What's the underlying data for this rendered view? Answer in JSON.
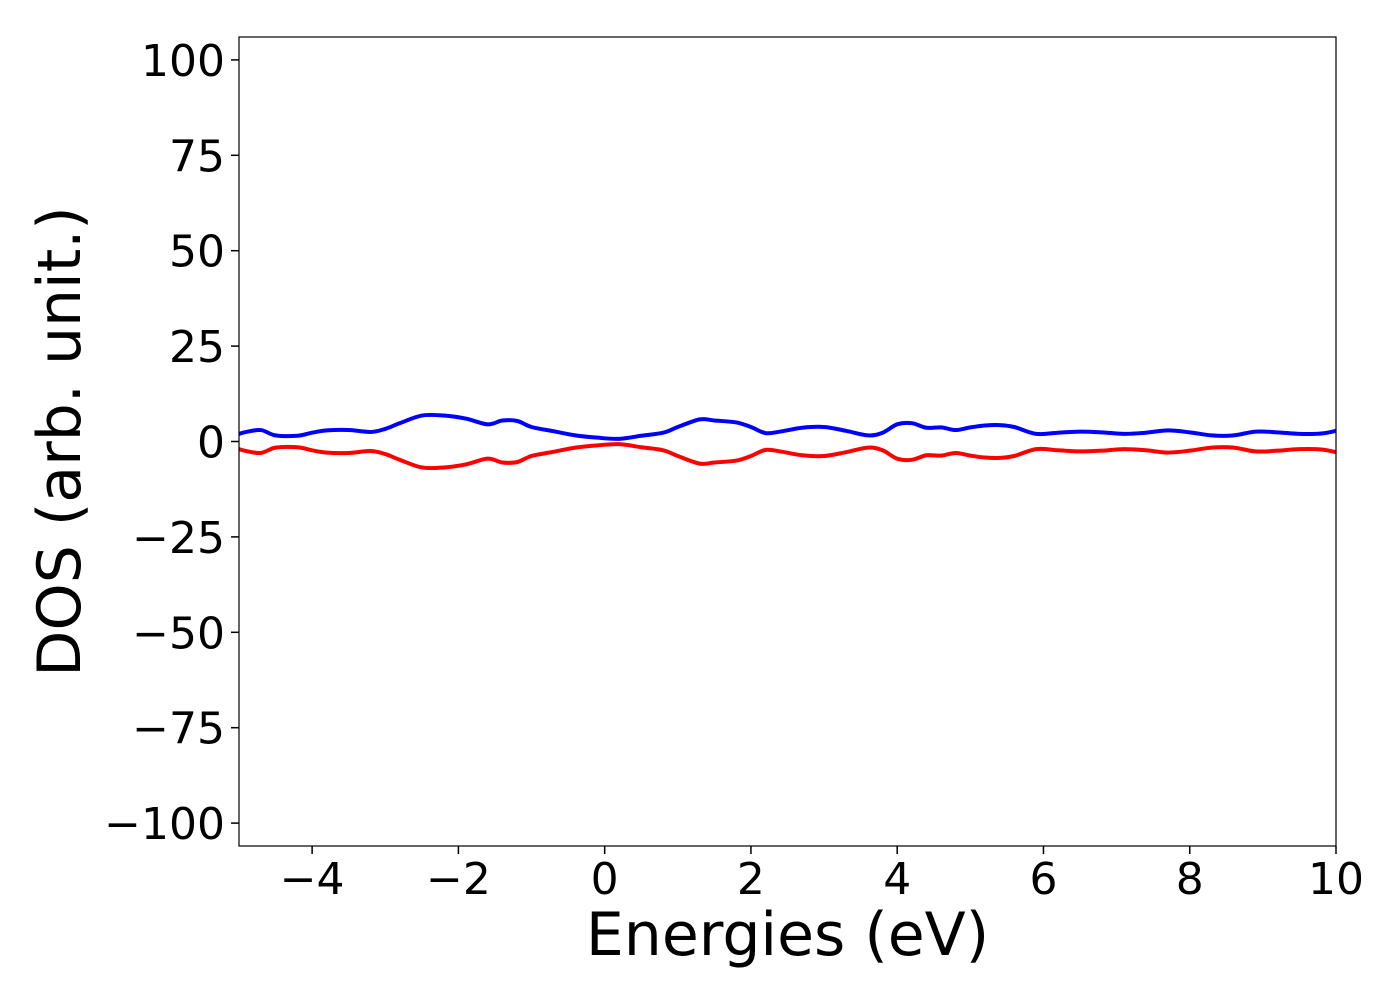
{
  "chart_data": {
    "type": "line",
    "title": "",
    "xlabel": "Energies (eV)",
    "ylabel": "DOS (arb. unit.)",
    "xlim": [
      -5,
      10
    ],
    "ylim": [
      -106,
      106
    ],
    "xticks": [
      -4,
      -2,
      0,
      2,
      4,
      6,
      8,
      10
    ],
    "xtick_labels": [
      "−4",
      "−2",
      "0",
      "2",
      "4",
      "6",
      "8",
      "10"
    ],
    "yticks": [
      100,
      75,
      50,
      25,
      0,
      -25,
      -50,
      -75,
      -100
    ],
    "ytick_labels": [
      "100",
      "75",
      "50",
      "25",
      "0",
      "−25",
      "−50",
      "−75",
      "−100"
    ],
    "grid": false,
    "legend": "none",
    "series": [
      {
        "color": "#0000ff",
        "x": [
          -5.0,
          -4.9,
          -4.7,
          -4.5,
          -4.2,
          -4.0,
          -3.8,
          -3.5,
          -3.2,
          -3.0,
          -2.8,
          -2.5,
          -2.2,
          -1.9,
          -1.6,
          -1.4,
          -1.2,
          -1.0,
          -0.7,
          -0.4,
          -0.1,
          0.2,
          0.5,
          0.8,
          1.0,
          1.3,
          1.5,
          1.8,
          2.0,
          2.2,
          2.4,
          2.7,
          3.0,
          3.3,
          3.6,
          3.8,
          4.0,
          4.2,
          4.4,
          4.6,
          4.8,
          5.0,
          5.2,
          5.4,
          5.6,
          5.9,
          6.2,
          6.5,
          6.8,
          7.1,
          7.4,
          7.7,
          8.0,
          8.3,
          8.6,
          8.9,
          9.2,
          9.5,
          9.8,
          10.0
        ],
        "y": [
          2.0,
          2.5,
          3.0,
          1.6,
          1.5,
          2.3,
          2.9,
          3.0,
          2.5,
          3.3,
          4.8,
          6.8,
          6.8,
          6.0,
          4.5,
          5.5,
          5.4,
          3.8,
          2.7,
          1.6,
          1.0,
          0.7,
          1.5,
          2.3,
          3.8,
          5.8,
          5.5,
          5.0,
          3.8,
          2.2,
          2.6,
          3.6,
          3.8,
          2.8,
          1.6,
          2.3,
          4.5,
          4.8,
          3.6,
          3.7,
          3.0,
          3.7,
          4.2,
          4.3,
          3.8,
          2.0,
          2.3,
          2.6,
          2.4,
          2.0,
          2.3,
          2.9,
          2.4,
          1.6,
          1.6,
          2.6,
          2.4,
          2.0,
          2.1,
          2.8
        ]
      },
      {
        "color": "#ff0000",
        "x": [
          -5.0,
          -4.9,
          -4.7,
          -4.5,
          -4.2,
          -4.0,
          -3.8,
          -3.5,
          -3.2,
          -3.0,
          -2.8,
          -2.5,
          -2.2,
          -1.9,
          -1.6,
          -1.4,
          -1.2,
          -1.0,
          -0.7,
          -0.4,
          -0.1,
          0.2,
          0.5,
          0.8,
          1.0,
          1.3,
          1.5,
          1.8,
          2.0,
          2.2,
          2.4,
          2.7,
          3.0,
          3.3,
          3.6,
          3.8,
          4.0,
          4.2,
          4.4,
          4.6,
          4.8,
          5.0,
          5.2,
          5.4,
          5.6,
          5.9,
          6.2,
          6.5,
          6.8,
          7.1,
          7.4,
          7.7,
          8.0,
          8.3,
          8.6,
          8.9,
          9.2,
          9.5,
          9.8,
          10.0
        ],
        "y": [
          -2.0,
          -2.5,
          -3.0,
          -1.6,
          -1.5,
          -2.3,
          -2.9,
          -3.0,
          -2.5,
          -3.3,
          -4.8,
          -6.8,
          -6.8,
          -6.0,
          -4.5,
          -5.5,
          -5.4,
          -3.8,
          -2.7,
          -1.6,
          -1.0,
          -0.7,
          -1.5,
          -2.3,
          -3.8,
          -5.8,
          -5.5,
          -5.0,
          -3.8,
          -2.2,
          -2.6,
          -3.6,
          -3.8,
          -2.8,
          -1.6,
          -2.3,
          -4.5,
          -4.8,
          -3.6,
          -3.7,
          -3.0,
          -3.7,
          -4.2,
          -4.3,
          -3.8,
          -2.0,
          -2.3,
          -2.6,
          -2.4,
          -2.0,
          -2.3,
          -2.9,
          -2.4,
          -1.6,
          -1.6,
          -2.6,
          -2.4,
          -2.0,
          -2.1,
          -2.8
        ]
      }
    ]
  }
}
